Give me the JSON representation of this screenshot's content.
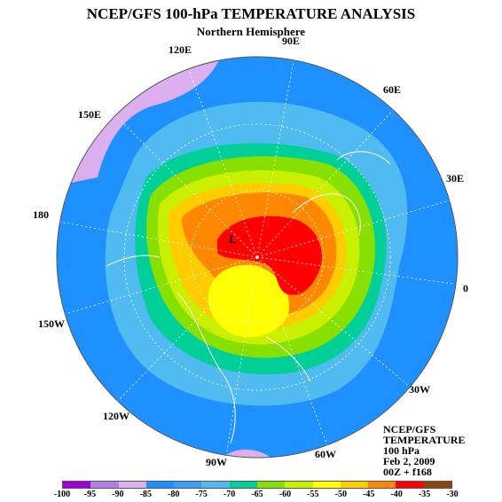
{
  "title": "NCEP/GFS 100-hPa TEMPERATURE ANALYSIS",
  "subtitle": "Northern Hemisphere",
  "longitude_labels": {
    "lon_90e": "90E",
    "lon_120e": "120E",
    "lon_60e": "60E",
    "lon_150e": "150E",
    "lon_30e": "30E",
    "lon_180": "180",
    "lon_0": "0",
    "lon_150w": "150W",
    "lon_30w": "30W",
    "lon_120w": "120W",
    "lon_60w": "60W",
    "lon_90w": "90W"
  },
  "low_marker": "L",
  "info_box": {
    "line1": "NCEP/GFS",
    "line2": "TEMPERATURE",
    "line3": "100 hPa",
    "line4": "Feb 2, 2009",
    "line5": "00Z + f168"
  },
  "colorbar": {
    "labels": [
      "-100",
      "-95",
      "-90",
      "-85",
      "-80",
      "-75",
      "-70",
      "-65",
      "-60",
      "-55",
      "-50",
      "-45",
      "-40",
      "-35",
      "-30"
    ],
    "colors": [
      "#9b00d6",
      "#b57ee8",
      "#dcb0f0",
      "#1e90ff",
      "#3aa0f5",
      "#50bbf0",
      "#00d098",
      "#88e000",
      "#c8f000",
      "#ffff00",
      "#ffcc00",
      "#ff8800",
      "#ff0000",
      "#8b4513"
    ]
  },
  "map_colors": {
    "ocean_band": "#1e90ff",
    "cold_lilac": "#dcb0f0",
    "cyan": "#50bbf0",
    "teal": "#00d098",
    "green": "#88e000",
    "yellow_green": "#c8f000",
    "yellow": "#ffff00",
    "orange_yellow": "#ffcc00",
    "orange": "#ff8800",
    "red": "#ff0000",
    "grid": "#ffffff"
  }
}
